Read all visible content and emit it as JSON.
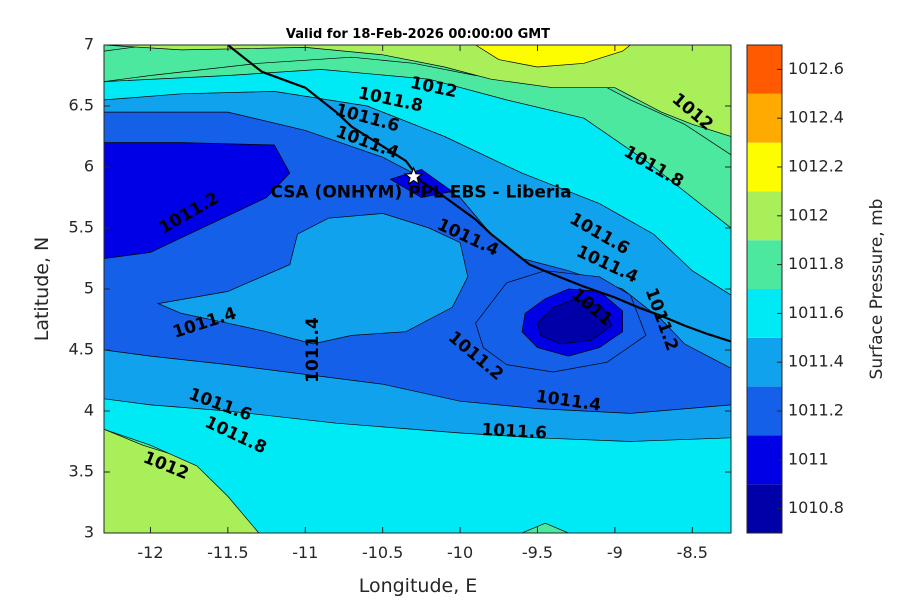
{
  "chart_data": {
    "type": "contour",
    "title": "Valid for 18-Feb-2026 00:00:00 GMT",
    "xlabel": "Longitude, E",
    "ylabel": "Latitude, N",
    "xlim": [
      -12.3,
      -8.25
    ],
    "ylim": [
      3,
      7
    ],
    "xticks": [
      "-12",
      "-11.5",
      "-11",
      "-10.5",
      "-10",
      "-9.5",
      "-9",
      "-8.5"
    ],
    "yticks": [
      "3",
      "3.5",
      "4",
      "4.5",
      "5",
      "5.5",
      "6",
      "6.5",
      "7"
    ],
    "colorbar": {
      "label": "Surface Pressure, mb",
      "levels": [
        1010.8,
        1011,
        1011.2,
        1011.4,
        1011.6,
        1011.8,
        1012,
        1012.2,
        1012.4,
        1012.6
      ],
      "tick_labels": [
        "1010.8",
        "1011",
        "1011.2",
        "1011.4",
        "1011.6",
        "1011.8",
        "1012",
        "1012.2",
        "1012.4",
        "1012.6"
      ],
      "colors": [
        "#0000a8",
        "#0000e6",
        "#1560e8",
        "#10a2ec",
        "#00eaf6",
        "#4ce8a0",
        "#a8ef5a",
        "#fdfd00",
        "#ffaa00",
        "#ff5a00"
      ]
    },
    "site": {
      "label": "CSA (ONHYM) PPL EBS  - Liberia",
      "lon": -10.3,
      "lat": 5.92,
      "marker": "star"
    },
    "contour_labels": [
      {
        "text": "1012",
        "lon": -10.17,
        "lat": 6.65,
        "rot": 12
      },
      {
        "text": "1011.8",
        "lon": -10.45,
        "lat": 6.55,
        "rot": 12
      },
      {
        "text": "1011.6",
        "lon": -10.6,
        "lat": 6.4,
        "rot": 15
      },
      {
        "text": "1011.4",
        "lon": -10.6,
        "lat": 6.2,
        "rot": 20
      },
      {
        "text": "1012",
        "lon": -8.5,
        "lat": 6.45,
        "rot": 40
      },
      {
        "text": "1011.8",
        "lon": -8.75,
        "lat": 6.0,
        "rot": 30
      },
      {
        "text": "1011.2",
        "lon": -11.75,
        "lat": 5.62,
        "rot": -30
      },
      {
        "text": "1011.4",
        "lon": -9.95,
        "lat": 5.42,
        "rot": 25
      },
      {
        "text": "1011.6",
        "lon": -9.1,
        "lat": 5.45,
        "rot": 30
      },
      {
        "text": "1011.4",
        "lon": -9.05,
        "lat": 5.2,
        "rot": 25
      },
      {
        "text": "1011",
        "lon": -9.15,
        "lat": 4.85,
        "rot": 40
      },
      {
        "text": "1011.2",
        "lon": -8.7,
        "lat": 4.75,
        "rot": 70
      },
      {
        "text": "1011.4",
        "lon": -11.65,
        "lat": 4.72,
        "rot": -18
      },
      {
        "text": "1011.4",
        "lon": -10.95,
        "lat": 4.5,
        "rot": -90
      },
      {
        "text": "1011.2",
        "lon": -9.9,
        "lat": 4.45,
        "rot": 40
      },
      {
        "text": "1011.4",
        "lon": -9.3,
        "lat": 4.08,
        "rot": 8
      },
      {
        "text": "1011.6",
        "lon": -11.55,
        "lat": 4.05,
        "rot": 20
      },
      {
        "text": "1011.6",
        "lon": -9.65,
        "lat": 3.83,
        "rot": 3
      },
      {
        "text": "1011.8",
        "lon": -11.45,
        "lat": 3.8,
        "rot": 25
      },
      {
        "text": "1012",
        "lon": -11.9,
        "lat": 3.55,
        "rot": 22
      }
    ],
    "coastline": [
      [
        -11.5,
        7.0
      ],
      [
        -11.4,
        6.9
      ],
      [
        -11.28,
        6.78
      ],
      [
        -11.15,
        6.72
      ],
      [
        -11.0,
        6.65
      ],
      [
        -10.9,
        6.55
      ],
      [
        -10.8,
        6.45
      ],
      [
        -10.7,
        6.33
      ],
      [
        -10.6,
        6.25
      ],
      [
        -10.45,
        6.13
      ],
      [
        -10.35,
        6.05
      ],
      [
        -10.25,
        5.88
      ],
      [
        -10.15,
        5.8
      ],
      [
        -10.02,
        5.68
      ],
      [
        -9.9,
        5.57
      ],
      [
        -9.8,
        5.45
      ],
      [
        -9.7,
        5.35
      ],
      [
        -9.55,
        5.2
      ],
      [
        -9.4,
        5.12
      ],
      [
        -9.2,
        5.02
      ],
      [
        -9.0,
        4.93
      ],
      [
        -8.85,
        4.85
      ],
      [
        -8.7,
        4.78
      ],
      [
        -8.55,
        4.7
      ],
      [
        -8.4,
        4.63
      ],
      [
        -8.25,
        4.57
      ]
    ],
    "contours": [
      {
        "level": 1011.8,
        "fill_index": 5,
        "points": [
          [
            -12.3,
            3.0
          ],
          [
            -12.3,
            6.95
          ],
          [
            -12.0,
            7.0
          ],
          [
            -9.0,
            7.0
          ],
          [
            -8.25,
            7.0
          ],
          [
            -8.25,
            6.1
          ],
          [
            -8.55,
            6.35
          ],
          [
            -8.9,
            6.55
          ],
          [
            -9.2,
            6.75
          ],
          [
            -9.5,
            6.72
          ],
          [
            -9.9,
            6.75
          ],
          [
            -10.3,
            6.85
          ],
          [
            -10.7,
            6.9
          ],
          [
            -11.3,
            6.85
          ],
          [
            -12.0,
            6.75
          ],
          [
            -12.3,
            6.7
          ],
          [
            -12.3,
            4.0
          ],
          [
            -12.0,
            3.95
          ],
          [
            -11.5,
            3.75
          ],
          [
            -11.0,
            3.55
          ],
          [
            -10.5,
            3.5
          ],
          [
            -10.0,
            3.4
          ],
          [
            -9.5,
            3.35
          ],
          [
            -9.0,
            3.35
          ],
          [
            -8.5,
            3.3
          ],
          [
            -8.25,
            3.3
          ],
          [
            -8.25,
            3.0
          ]
        ]
      },
      {
        "level": 1012,
        "fill_index": 6,
        "points": [
          [
            -12.3,
            3.0
          ],
          [
            -12.3,
            3.85
          ],
          [
            -12.05,
            3.72
          ],
          [
            -11.7,
            3.58
          ],
          [
            -11.5,
            3.35
          ],
          [
            -11.3,
            3.15
          ],
          [
            -11.25,
            3.0
          ]
        ]
      },
      {
        "level": 1012,
        "fill_index": 6,
        "points": [
          [
            -12.3,
            7.0
          ],
          [
            -11.8,
            6.96
          ],
          [
            -11.0,
            6.98
          ],
          [
            -10.5,
            6.92
          ],
          [
            -10.1,
            6.82
          ],
          [
            -9.8,
            6.72
          ],
          [
            -9.4,
            6.65
          ],
          [
            -9.0,
            6.65
          ],
          [
            -8.7,
            6.45
          ],
          [
            -8.5,
            6.35
          ],
          [
            -8.25,
            6.25
          ],
          [
            -8.25,
            7.0
          ]
        ]
      },
      {
        "level": 1012.2,
        "fill_index": 7,
        "points": [
          [
            -9.9,
            7.0
          ],
          [
            -9.75,
            6.88
          ],
          [
            -9.5,
            6.82
          ],
          [
            -9.2,
            6.85
          ],
          [
            -8.95,
            6.95
          ],
          [
            -8.9,
            7.0
          ]
        ]
      },
      {
        "level": 1011.6,
        "fill_index": 4,
        "points": [
          [
            -12.3,
            3.85
          ],
          [
            -12.3,
            6.7
          ],
          [
            -11.5,
            6.75
          ],
          [
            -10.9,
            6.8
          ],
          [
            -10.2,
            6.72
          ],
          [
            -9.7,
            6.55
          ],
          [
            -9.2,
            6.4
          ],
          [
            -8.8,
            6.05
          ],
          [
            -8.5,
            5.75
          ],
          [
            -8.25,
            5.5
          ],
          [
            -8.25,
            3.0
          ],
          [
            -9.3,
            3.0
          ],
          [
            -9.45,
            3.08
          ],
          [
            -9.6,
            3.0
          ],
          [
            -11.3,
            3.0
          ],
          [
            -11.5,
            3.3
          ],
          [
            -11.7,
            3.55
          ],
          [
            -12.0,
            3.72
          ]
        ]
      },
      {
        "level": 1011.4,
        "fill_index": 3,
        "points": [
          [
            -12.3,
            4.1
          ],
          [
            -12.3,
            6.55
          ],
          [
            -11.8,
            6.6
          ],
          [
            -11.2,
            6.62
          ],
          [
            -10.6,
            6.5
          ],
          [
            -10.1,
            6.25
          ],
          [
            -9.6,
            5.95
          ],
          [
            -9.1,
            5.7
          ],
          [
            -8.75,
            5.45
          ],
          [
            -8.5,
            5.15
          ],
          [
            -8.25,
            4.95
          ],
          [
            -8.25,
            3.78
          ],
          [
            -8.9,
            3.75
          ],
          [
            -9.5,
            3.78
          ],
          [
            -10.0,
            3.82
          ],
          [
            -10.8,
            3.9
          ],
          [
            -11.5,
            4.0
          ],
          [
            -12.0,
            4.05
          ]
        ]
      },
      {
        "level": 1011.2,
        "fill_index": 2,
        "points": [
          [
            -12.3,
            4.5
          ],
          [
            -12.3,
            6.45
          ],
          [
            -11.5,
            6.45
          ],
          [
            -11.0,
            6.3
          ],
          [
            -10.5,
            6.08
          ],
          [
            -10.0,
            5.75
          ],
          [
            -9.8,
            5.45
          ],
          [
            -9.6,
            5.25
          ],
          [
            -9.3,
            5.15
          ],
          [
            -8.95,
            5.0
          ],
          [
            -8.7,
            4.75
          ],
          [
            -8.55,
            4.55
          ],
          [
            -8.25,
            4.35
          ],
          [
            -8.25,
            4.05
          ],
          [
            -8.9,
            3.98
          ],
          [
            -9.5,
            4.02
          ],
          [
            -10.0,
            4.08
          ],
          [
            -10.5,
            4.22
          ],
          [
            -11.0,
            4.3
          ],
          [
            -11.5,
            4.38
          ],
          [
            -12.0,
            4.45
          ]
        ]
      },
      {
        "level": 1011.4,
        "fill_index": 3,
        "points": [
          [
            -11.95,
            4.88
          ],
          [
            -11.5,
            4.98
          ],
          [
            -11.1,
            5.2
          ],
          [
            -11.05,
            5.45
          ],
          [
            -10.85,
            5.58
          ],
          [
            -10.5,
            5.62
          ],
          [
            -10.2,
            5.5
          ],
          [
            -10.0,
            5.38
          ],
          [
            -9.95,
            5.1
          ],
          [
            -10.05,
            4.85
          ],
          [
            -10.35,
            4.65
          ],
          [
            -10.7,
            4.62
          ],
          [
            -10.95,
            4.55
          ],
          [
            -11.25,
            4.65
          ],
          [
            -11.5,
            4.72
          ],
          [
            -11.8,
            4.8
          ]
        ]
      },
      {
        "level": 1011.2,
        "fill_index": 2,
        "points": [
          [
            -9.9,
            4.72
          ],
          [
            -9.7,
            5.05
          ],
          [
            -9.45,
            5.15
          ],
          [
            -9.1,
            5.1
          ],
          [
            -8.9,
            4.95
          ],
          [
            -8.8,
            4.62
          ],
          [
            -9.05,
            4.4
          ],
          [
            -9.4,
            4.32
          ],
          [
            -9.7,
            4.38
          ],
          [
            -9.85,
            4.52
          ]
        ]
      },
      {
        "level": 1011.0,
        "fill_index": 1,
        "points": [
          [
            -9.58,
            4.8
          ],
          [
            -9.45,
            4.92
          ],
          [
            -9.3,
            5.0
          ],
          [
            -9.1,
            4.98
          ],
          [
            -8.95,
            4.82
          ],
          [
            -8.95,
            4.65
          ],
          [
            -9.1,
            4.52
          ],
          [
            -9.3,
            4.45
          ],
          [
            -9.5,
            4.52
          ],
          [
            -9.6,
            4.65
          ]
        ]
      },
      {
        "level": 1010.8,
        "fill_index": 0,
        "points": [
          [
            -9.5,
            4.72
          ],
          [
            -9.4,
            4.85
          ],
          [
            -9.25,
            4.92
          ],
          [
            -9.08,
            4.85
          ],
          [
            -9.02,
            4.7
          ],
          [
            -9.15,
            4.58
          ],
          [
            -9.35,
            4.55
          ],
          [
            -9.48,
            4.62
          ]
        ]
      },
      {
        "level": 1011.0,
        "fill_index": 1,
        "points": [
          [
            -12.3,
            5.25
          ],
          [
            -12.3,
            6.2
          ],
          [
            -11.8,
            6.2
          ],
          [
            -11.2,
            6.18
          ],
          [
            -11.1,
            5.95
          ],
          [
            -11.25,
            5.75
          ],
          [
            -11.5,
            5.6
          ],
          [
            -11.75,
            5.45
          ],
          [
            -12.0,
            5.3
          ]
        ]
      },
      {
        "level": 1011.0,
        "fill_index": 1,
        "points": [
          [
            -10.45,
            5.9
          ],
          [
            -10.25,
            5.98
          ],
          [
            -10.05,
            5.8
          ],
          [
            -10.25,
            5.75
          ]
        ]
      }
    ]
  }
}
